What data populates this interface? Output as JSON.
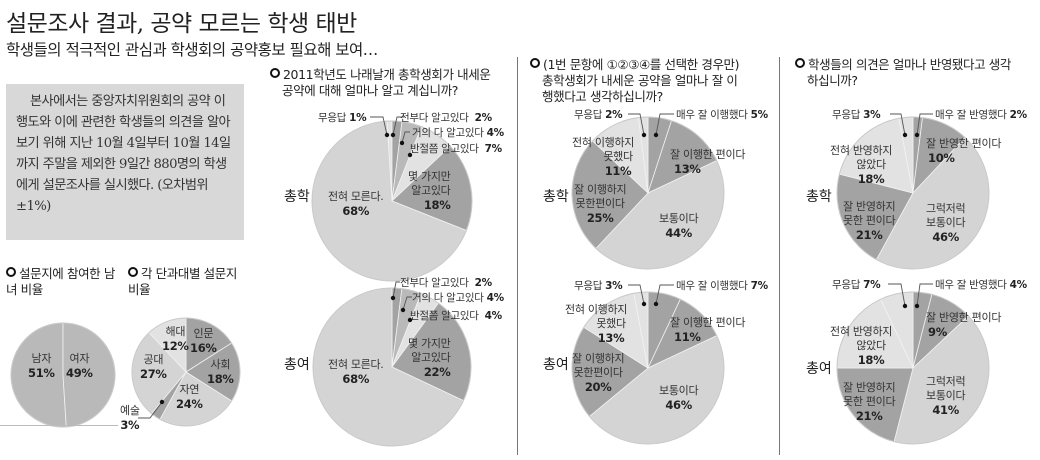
{
  "header": {
    "title": "설문조사 결과, 공약 모르는 학생 태반",
    "subtitle": "학생들의 적극적인 관심과 학생회의 공약홍보 필요해 보여…"
  },
  "intro": {
    "text": "본사에서는 중앙자치위원회의 공약 이행도와 이에 관련한 학생들의 의견을 알아보기 위해 지난 10월 4일부터 10월 14일까지 주말을 제외한 9일간 880명의 학생에게 설문조사를 실시했다. (오차범위 ±1%)"
  },
  "colors": {
    "pie_light": "#d4d4d4",
    "pie_mid": "#b9b9b9",
    "pie_dark": "#a3a3a3",
    "pie_lightest": "#e2e2e2",
    "intro_bg": "#d8d8d8",
    "divider": "#777777"
  },
  "gender": {
    "heading": "설문지에 참여한 남녀 비율",
    "male_label": "남자",
    "male_value": "51%",
    "female_label": "여자",
    "female_value": "49%"
  },
  "college": {
    "heading": "각 단과대별 설문지 비율",
    "items": [
      {
        "label": "인문",
        "value": "16%"
      },
      {
        "label": "사회",
        "value": "18%"
      },
      {
        "label": "자연",
        "value": "24%"
      },
      {
        "label": "예술",
        "value": "3%"
      },
      {
        "label": "공대",
        "value": "27%"
      },
      {
        "label": "해대",
        "value": "12%"
      }
    ]
  },
  "q1": {
    "heading_line1": "2011학년도 나래날개 총학생회가 내세운",
    "heading_line2": "공약에 대해 얼마나 알고 계십니까?",
    "rows": [
      {
        "group": "총학",
        "no_answer": {
          "label": "무응답",
          "value": "1%"
        },
        "all_know": {
          "label": "전부다 알고있다",
          "value": "2%"
        },
        "most_know": {
          "label": "거의 다 알고있다",
          "value": "4%"
        },
        "half_know": {
          "label": "반절쯤 알고있다",
          "value": "7%"
        },
        "some_know": {
          "label1": "몇 가지만",
          "label2": "알고있다",
          "value": "18%"
        },
        "none_know": {
          "label": "전혀 모른다.",
          "value": "68%"
        }
      },
      {
        "group": "총여",
        "all_know": {
          "label": "전부다 알고있다",
          "value": "2%"
        },
        "most_know": {
          "label": "거의 다 알고있다",
          "value": "4%"
        },
        "half_know": {
          "label": "반절쯤 알고있다",
          "value": "4%"
        },
        "some_know": {
          "label1": "몇 가지만",
          "label2": "알고있다",
          "value": "22%"
        },
        "none_know": {
          "label": "전혀 모른다.",
          "value": "68%"
        }
      }
    ]
  },
  "q2": {
    "heading_line1": "(1번 문항에 ①②③④를 선택한 경우만)",
    "heading_line2": "총학생회가 내세운 공약을 얼마나 잘 이",
    "heading_line3": "행했다고 생각하십니까?",
    "rows": [
      {
        "group": "총학",
        "no_answer": {
          "label": "무응답",
          "value": "2%"
        },
        "very_well": {
          "label": "매우 잘 이행했다",
          "value": "5%"
        },
        "well": {
          "label": "잘 이행한 편이다",
          "value": "13%"
        },
        "normal": {
          "label": "보통이다",
          "value": "44%"
        },
        "not_well": {
          "label1": "잘 이행하지",
          "label2": "못한편이다",
          "value": "25%"
        },
        "not_at_all": {
          "label1": "전혀 이행하지",
          "label2": "못했다",
          "value": "11%"
        }
      },
      {
        "group": "총여",
        "no_answer": {
          "label": "무응답",
          "value": "3%"
        },
        "very_well": {
          "label": "매우 잘 이행했다",
          "value": "7%"
        },
        "well": {
          "label": "잘 이행한 편이다",
          "value": "11%"
        },
        "normal": {
          "label": "보통이다",
          "value": "46%"
        },
        "not_well": {
          "label1": "잘 이행하지",
          "label2": "못한편이다",
          "value": "20%"
        },
        "not_at_all": {
          "label1": "전혀 이행하지",
          "label2": "못했다",
          "value": "13%"
        }
      }
    ]
  },
  "q3": {
    "heading_line1": "학생들의 의견은 얼마나 반영됐다고 생각",
    "heading_line2": "하십니까?",
    "rows": [
      {
        "group": "총학",
        "no_answer": {
          "label": "무응답",
          "value": "3%"
        },
        "very_well": {
          "label": "매우 잘 반영했다",
          "value": "2%"
        },
        "well": {
          "label": "잘 반영한 편이다",
          "value": "10%"
        },
        "normal": {
          "label1": "그럭저럭",
          "label2": "보통이다",
          "value": "46%"
        },
        "not_well": {
          "label1": "잘 반영하지",
          "label2": "못한 편이다",
          "value": "21%"
        },
        "not_at_all": {
          "label1": "전혀 반영하지",
          "label2": "않았다",
          "value": "18%"
        }
      },
      {
        "group": "총여",
        "no_answer": {
          "label": "무응답",
          "value": "7%"
        },
        "very_well": {
          "label": "매우 잘 반영했다",
          "value": "4%"
        },
        "well": {
          "label": "잘 반영한 편이다",
          "value": "9%"
        },
        "normal": {
          "label1": "그럭저럭",
          "label2": "보통이다",
          "value": "41%"
        },
        "not_well": {
          "label1": "잘 반영하지",
          "label2": "못한 편이다",
          "value": "21%"
        },
        "not_at_all": {
          "label1": "전혀 반영하지",
          "label2": "않았다",
          "value": "18%"
        }
      }
    ]
  },
  "chart_data": [
    {
      "type": "pie",
      "title": "설문지에 참여한 남녀 비율",
      "categories": [
        "남자",
        "여자"
      ],
      "values": [
        51,
        49
      ]
    },
    {
      "type": "pie",
      "title": "각 단과대별 설문지 비율",
      "categories": [
        "인문",
        "사회",
        "자연",
        "예술",
        "공대",
        "해대"
      ],
      "values": [
        16,
        18,
        24,
        3,
        27,
        12
      ]
    },
    {
      "type": "pie",
      "title": "2011학년도 나래날개 총학생회가 내세운 공약에 대해 얼마나 알고 계십니까? - 총학",
      "categories": [
        "무응답",
        "전부다 알고있다",
        "거의 다 알고있다",
        "반절쯤 알고있다",
        "몇 가지만 알고있다",
        "전혀 모른다."
      ],
      "values": [
        1,
        2,
        4,
        7,
        18,
        68
      ]
    },
    {
      "type": "pie",
      "title": "2011학년도 나래날개 총학생회가 내세운 공약에 대해 얼마나 알고 계십니까? - 총여",
      "categories": [
        "전부다 알고있다",
        "거의 다 알고있다",
        "반절쯤 알고있다",
        "몇 가지만 알고있다",
        "전혀 모른다."
      ],
      "values": [
        2,
        4,
        4,
        22,
        68
      ]
    },
    {
      "type": "pie",
      "title": "총학생회가 내세운 공약을 얼마나 잘 이행했다고 생각하십니까? - 총학",
      "categories": [
        "매우 잘 이행했다",
        "잘 이행한 편이다",
        "보통이다",
        "잘 이행하지 못한편이다",
        "전혀 이행하지 못했다",
        "무응답"
      ],
      "values": [
        5,
        13,
        44,
        25,
        11,
        2
      ]
    },
    {
      "type": "pie",
      "title": "총학생회가 내세운 공약을 얼마나 잘 이행했다고 생각하십니까? - 총여",
      "categories": [
        "매우 잘 이행했다",
        "잘 이행한 편이다",
        "보통이다",
        "잘 이행하지 못한편이다",
        "전혀 이행하지 못했다",
        "무응답"
      ],
      "values": [
        7,
        11,
        46,
        20,
        13,
        3
      ]
    },
    {
      "type": "pie",
      "title": "학생들의 의견은 얼마나 반영됐다고 생각하십니까? - 총학",
      "categories": [
        "매우 잘 반영했다",
        "잘 반영한 편이다",
        "그럭저럭 보통이다",
        "잘 반영하지 못한 편이다",
        "전혀 반영하지 않았다",
        "무응답"
      ],
      "values": [
        2,
        10,
        46,
        21,
        18,
        3
      ]
    },
    {
      "type": "pie",
      "title": "학생들의 의견은 얼마나 반영됐다고 생각하십니까? - 총여",
      "categories": [
        "매우 잘 반영했다",
        "잘 반영한 편이다",
        "그럭저럭 보통이다",
        "잘 반영하지 못한 편이다",
        "전혀 반영하지 않았다",
        "무응답"
      ],
      "values": [
        4,
        9,
        41,
        21,
        18,
        7
      ]
    }
  ]
}
